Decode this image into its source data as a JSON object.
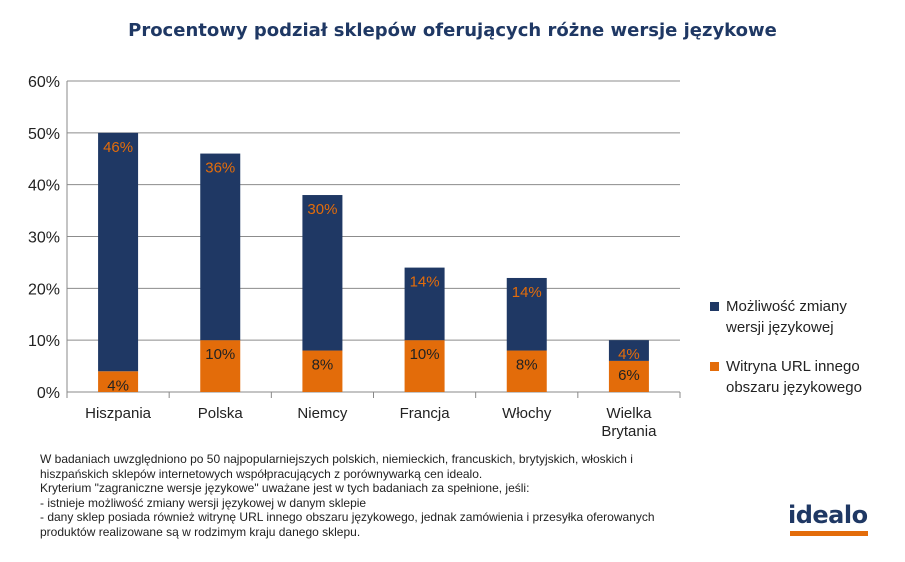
{
  "title": "Procentowy podział sklepów oferujących różne wersje językowe",
  "chart_data": {
    "type": "bar",
    "stacked": true,
    "categories": [
      [
        "Hiszpania"
      ],
      [
        "Polska"
      ],
      [
        "Niemcy"
      ],
      [
        "Francja"
      ],
      [
        "Włochy"
      ],
      [
        "Wielka",
        "Brytania"
      ]
    ],
    "series": [
      {
        "name": "Witryna URL innego obszaru językowego",
        "values": [
          4,
          10,
          8,
          10,
          8,
          6
        ],
        "color": "#e36c0a",
        "label_color": "#222222"
      },
      {
        "name": "Możliwość zmiany wersji językowej",
        "values": [
          46,
          36,
          30,
          14,
          14,
          4
        ],
        "color": "#1f3864",
        "label_color": "#e36c0a"
      }
    ],
    "legend": [
      {
        "lines": [
          "Możliwość zmiany",
          "wersji językowej"
        ],
        "color": "#1f3864"
      },
      {
        "lines": [
          "Witryna URL innego",
          "obszaru językowego"
        ],
        "color": "#e36c0a"
      }
    ],
    "legend_position": "right",
    "value_suffix": "%",
    "ylim": [
      0,
      60
    ],
    "yticks": [
      0,
      10,
      20,
      30,
      40,
      50,
      60
    ],
    "ytick_labels": [
      "0%",
      "10%",
      "20%",
      "30%",
      "40%",
      "50%",
      "60%"
    ],
    "grid": "horizontal"
  },
  "footnote": [
    "W badaniach uwzględniono po 50 najpopularniejszych polskich, niemieckich, francuskich, brytyjskich, włoskich i",
    "hiszpańskich sklepów internetowych współpracujących z porównywarką cen idealo.",
    "Kryterium \"zagraniczne wersje językowe\" uważane jest w tych badaniach za spełnione, jeśli:",
    "- istnieje możliwość zmiany wersji językowej w danym sklepie",
    "- dany sklep posiada również witrynę URL innego obszaru językowego, jednak zamówienia i przesyłka oferowanych",
    "produktów realizowane są w rodzimym kraju danego sklepu."
  ],
  "logo": "idealo"
}
